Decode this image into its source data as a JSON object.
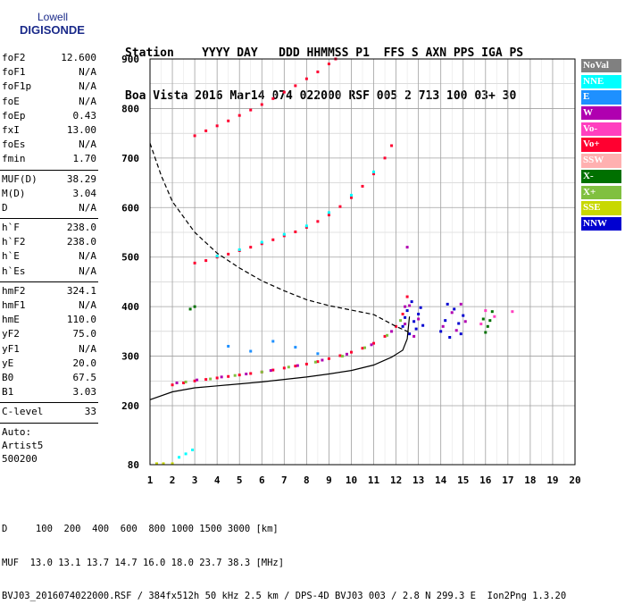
{
  "logo": {
    "line1": "Lowell",
    "line2": "DIGISONDE"
  },
  "header": {
    "labels": "Station    YYYY DAY   DDD HHMMSS P1  FFS S AXN PPS IGA PS",
    "values": "Boa Vista 2016 Mar14 074 022000 RSF 005 2 713 100 03+ 30"
  },
  "parameters": {
    "group1": [
      {
        "key": "foF2",
        "value": "12.600"
      },
      {
        "key": "foF1",
        "value": "N/A"
      },
      {
        "key": "foF1p",
        "value": "N/A"
      },
      {
        "key": "foE",
        "value": "N/A"
      },
      {
        "key": "foEp",
        "value": "0.43"
      },
      {
        "key": "fxI",
        "value": "13.00"
      },
      {
        "key": "foEs",
        "value": "N/A"
      },
      {
        "key": "fmin",
        "value": "1.70"
      }
    ],
    "group2": [
      {
        "key": "MUF(D)",
        "value": "38.29"
      },
      {
        "key": "M(D)",
        "value": "3.04"
      },
      {
        "key": "D",
        "value": "N/A"
      }
    ],
    "group3": [
      {
        "key": "h`F",
        "value": "238.0"
      },
      {
        "key": "h`F2",
        "value": "238.0"
      },
      {
        "key": "h`E",
        "value": "N/A"
      },
      {
        "key": "h`Es",
        "value": "N/A"
      }
    ],
    "group4": [
      {
        "key": "hmF2",
        "value": "324.1"
      },
      {
        "key": "hmF1",
        "value": "N/A"
      },
      {
        "key": "hmE",
        "value": "110.0"
      },
      {
        "key": "yF2",
        "value": "75.0"
      },
      {
        "key": "yF1",
        "value": "N/A"
      },
      {
        "key": "yE",
        "value": "20.0"
      },
      {
        "key": "B0",
        "value": "67.5"
      },
      {
        "key": "B1",
        "value": "3.03"
      }
    ],
    "group5": [
      {
        "key": "C-level",
        "value": "33"
      }
    ],
    "auto": [
      "Auto:",
      "Artist5",
      "500200"
    ]
  },
  "legend": [
    {
      "label": "NoVal",
      "bg": "#808080",
      "fg": "#ffffff"
    },
    {
      "label": "NNE",
      "bg": "#00ffff",
      "fg": "#ffffff"
    },
    {
      "label": "E",
      "bg": "#1e90ff",
      "fg": "#ffffff"
    },
    {
      "label": "W",
      "bg": "#b000b0",
      "fg": "#ffffff"
    },
    {
      "label": "Vo-",
      "bg": "#ff3fbf",
      "fg": "#ffffff"
    },
    {
      "label": "Vo+",
      "bg": "#ff0030",
      "fg": "#ffffff"
    },
    {
      "label": "SSW",
      "bg": "#ffb0b0",
      "fg": "#ffffff"
    },
    {
      "label": "X-",
      "bg": "#007000",
      "fg": "#ffffff"
    },
    {
      "label": "X+",
      "bg": "#80c040",
      "fg": "#ffffff"
    },
    {
      "label": "SSE",
      "bg": "#c8d800",
      "fg": "#ffffff"
    },
    {
      "label": "NNW",
      "bg": "#0000d0",
      "fg": "#ffffff"
    }
  ],
  "chart_data": {
    "type": "scatter",
    "xlim": [
      1,
      20
    ],
    "ylim": [
      80,
      900
    ],
    "x_ticks": [
      1,
      2,
      3,
      4,
      5,
      6,
      7,
      8,
      9,
      10,
      11,
      12,
      13,
      14,
      15,
      16,
      17,
      18,
      19,
      20
    ],
    "y_ticks": [
      80,
      200,
      300,
      400,
      500,
      600,
      700,
      800,
      900
    ],
    "grid": true,
    "legend_position": "right",
    "series": [
      {
        "color": "#ff0030",
        "points": [
          [
            2.0,
            242
          ],
          [
            2.5,
            246
          ],
          [
            3.0,
            250
          ],
          [
            3.5,
            253
          ],
          [
            4.0,
            256
          ],
          [
            4.5,
            259
          ],
          [
            5.0,
            262
          ],
          [
            5.5,
            265
          ],
          [
            6.0,
            268
          ],
          [
            6.5,
            272
          ],
          [
            7.0,
            276
          ],
          [
            7.5,
            280
          ],
          [
            8.0,
            284
          ],
          [
            8.5,
            289
          ],
          [
            9.0,
            295
          ],
          [
            9.5,
            301
          ],
          [
            10.0,
            308
          ],
          [
            10.5,
            316
          ],
          [
            11.0,
            326
          ],
          [
            11.5,
            340
          ],
          [
            12.0,
            360
          ],
          [
            12.3,
            385
          ],
          [
            12.5,
            420
          ]
        ]
      },
      {
        "color": "#b000b0",
        "points": [
          [
            2.2,
            246
          ],
          [
            3.1,
            252
          ],
          [
            4.2,
            258
          ],
          [
            5.3,
            264
          ],
          [
            6.4,
            271
          ],
          [
            7.6,
            281
          ],
          [
            8.7,
            292
          ],
          [
            9.8,
            304
          ],
          [
            10.9,
            323
          ],
          [
            11.8,
            350
          ],
          [
            12.4,
            400
          ]
        ]
      },
      {
        "color": "#80c040",
        "points": [
          [
            2.6,
            248
          ],
          [
            3.7,
            254
          ],
          [
            4.8,
            261
          ],
          [
            6.0,
            268
          ],
          [
            7.2,
            278
          ],
          [
            8.4,
            288
          ],
          [
            9.6,
            300
          ],
          [
            10.6,
            317
          ],
          [
            11.6,
            342
          ],
          [
            12.2,
            372
          ]
        ]
      },
      {
        "color": "#ff0030",
        "points": [
          [
            3.0,
            488
          ],
          [
            3.5,
            493
          ],
          [
            4.0,
            500
          ],
          [
            4.5,
            506
          ],
          [
            5.0,
            513
          ],
          [
            5.5,
            520
          ],
          [
            6.0,
            527
          ],
          [
            6.5,
            535
          ],
          [
            7.0,
            543
          ],
          [
            7.5,
            551
          ],
          [
            8.0,
            560
          ],
          [
            8.5,
            572
          ],
          [
            9.0,
            585
          ],
          [
            9.5,
            602
          ],
          [
            10.0,
            620
          ],
          [
            10.5,
            643
          ],
          [
            11.0,
            668
          ],
          [
            11.5,
            700
          ],
          [
            11.8,
            725
          ]
        ]
      },
      {
        "color": "#00ffff",
        "points": [
          [
            4.0,
            502
          ],
          [
            5.0,
            515
          ],
          [
            6.0,
            530
          ],
          [
            7.0,
            546
          ],
          [
            8.0,
            563
          ],
          [
            9.0,
            590
          ],
          [
            10.0,
            625
          ],
          [
            11.0,
            672
          ]
        ]
      },
      {
        "color": "#ff0030",
        "points": [
          [
            3.0,
            745
          ],
          [
            3.5,
            755
          ],
          [
            4.0,
            765
          ],
          [
            4.5,
            775
          ],
          [
            5.0,
            786
          ],
          [
            5.5,
            797
          ],
          [
            6.0,
            808
          ],
          [
            6.5,
            820
          ],
          [
            7.0,
            833
          ],
          [
            7.5,
            846
          ],
          [
            8.0,
            860
          ],
          [
            8.5,
            874
          ],
          [
            9.0,
            890
          ],
          [
            9.3,
            900
          ]
        ]
      },
      {
        "color": "#0000d0",
        "points": [
          [
            12.3,
            360
          ],
          [
            12.4,
            378
          ],
          [
            12.5,
            392
          ],
          [
            12.6,
            345
          ],
          [
            12.7,
            410
          ],
          [
            12.8,
            370
          ],
          [
            12.9,
            355
          ],
          [
            13.0,
            385
          ],
          [
            13.1,
            398
          ],
          [
            13.2,
            362
          ],
          [
            14.0,
            350
          ],
          [
            14.2,
            372
          ],
          [
            14.4,
            338
          ],
          [
            14.6,
            395
          ],
          [
            14.8,
            366
          ],
          [
            15.0,
            382
          ],
          [
            14.3,
            405
          ],
          [
            14.9,
            345
          ]
        ]
      },
      {
        "color": "#b000b0",
        "points": [
          [
            12.4,
            365
          ],
          [
            12.6,
            402
          ],
          [
            12.8,
            340
          ],
          [
            13.0,
            375
          ],
          [
            14.1,
            360
          ],
          [
            14.5,
            388
          ],
          [
            14.7,
            352
          ],
          [
            14.9,
            405
          ],
          [
            15.1,
            370
          ],
          [
            12.5,
            520
          ]
        ]
      },
      {
        "color": "#007000",
        "points": [
          [
            15.9,
            375
          ],
          [
            16.1,
            360
          ],
          [
            16.3,
            390
          ],
          [
            16.0,
            348
          ],
          [
            16.2,
            372
          ]
        ]
      },
      {
        "color": "#ff3fbf",
        "points": [
          [
            16.0,
            392
          ],
          [
            16.4,
            380
          ],
          [
            15.8,
            365
          ],
          [
            17.2,
            390
          ]
        ]
      },
      {
        "color": "#00ffff",
        "points": [
          [
            2.3,
            95
          ],
          [
            2.6,
            102
          ],
          [
            2.9,
            110
          ]
        ]
      },
      {
        "color": "#c8d800",
        "points": [
          [
            1.3,
            82
          ],
          [
            1.6,
            82
          ],
          [
            2.0,
            82
          ]
        ]
      },
      {
        "color": "#1e90ff",
        "points": [
          [
            4.5,
            320
          ],
          [
            5.5,
            310
          ],
          [
            6.5,
            330
          ],
          [
            7.5,
            318
          ],
          [
            8.5,
            305
          ]
        ]
      },
      {
        "color": "#007000",
        "points": [
          [
            2.8,
            395
          ],
          [
            3.0,
            400
          ]
        ]
      }
    ],
    "curves": [
      {
        "name": "true_height",
        "style": "solid",
        "points": [
          [
            1,
            212
          ],
          [
            2,
            228
          ],
          [
            3,
            236
          ],
          [
            4,
            240
          ],
          [
            5,
            244
          ],
          [
            6,
            248
          ],
          [
            7,
            253
          ],
          [
            8,
            258
          ],
          [
            9,
            264
          ],
          [
            10,
            271
          ],
          [
            11,
            282
          ],
          [
            11.8,
            298
          ],
          [
            12.3,
            312
          ],
          [
            12.5,
            335
          ],
          [
            12.6,
            380
          ]
        ]
      },
      {
        "name": "muf_curve",
        "style": "dashed",
        "points": [
          [
            1,
            730
          ],
          [
            1.5,
            665
          ],
          [
            2,
            612
          ],
          [
            3,
            550
          ],
          [
            4,
            508
          ],
          [
            5,
            478
          ],
          [
            6,
            452
          ],
          [
            7,
            432
          ],
          [
            8,
            414
          ],
          [
            9,
            402
          ],
          [
            10,
            393
          ],
          [
            11,
            384
          ],
          [
            12,
            360
          ],
          [
            12.6,
            348
          ]
        ]
      }
    ]
  },
  "footer": {
    "line1": "D     100  200  400  600  800 1000 1500 3000 [km]",
    "line2": "MUF  13.0 13.1 13.7 14.7 16.0 18.0 23.7 38.3 [MHz]",
    "line3": "BVJ03_2016074022000.RSF / 384fx512h 50 kHz 2.5 km / DPS-4D BVJ03 003 / 2.8 N 299.3 E  Ion2Png 1.3.20"
  }
}
